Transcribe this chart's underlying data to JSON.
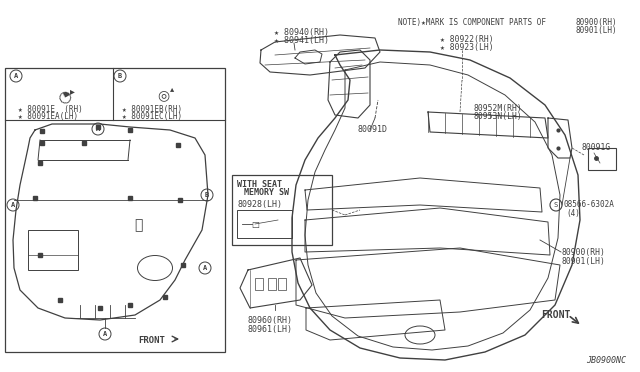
{
  "bg_color": "#ffffff",
  "line_color": "#404040",
  "label_color": "#404040",
  "diagram_id": "JB0900NC",
  "labels": {
    "note": "NOTE)★MARK IS COMPONENT PARTS OF",
    "80900rh": "80900(RH)",
    "80901lh": "80901(LH)",
    "80922rh": "⠅80922(RH)",
    "80923lh": "⠅80923(LH)",
    "80940rh": "★ 80940(RH)",
    "80941lh": "★ 80941(LH)",
    "80091d": "80091D",
    "80952m": "80952M(RH)",
    "80953n": "80953N(LH)",
    "80091g": "80091G",
    "s08566": "(S)08566-6302A",
    "s08566b": "(4)",
    "80900rh2": "80900(RH)",
    "80901lh2": "80901(LH)",
    "80960rh": "80960(RH)",
    "80961lh": "80961(LH)",
    "80928lh": "80928(LH)",
    "with_seat": "WITH SEAT\n   MEMORY SW",
    "80091e_rh": "★ 80091E  (RH)",
    "80091ea_lh": "★ 80091EA(LH)",
    "80091eb_rh": "★ 80091EB(RH)",
    "80091ec_lh": "★ 80091EC(LH)",
    "front_left": "FRONT",
    "front_right": "FRONT"
  }
}
